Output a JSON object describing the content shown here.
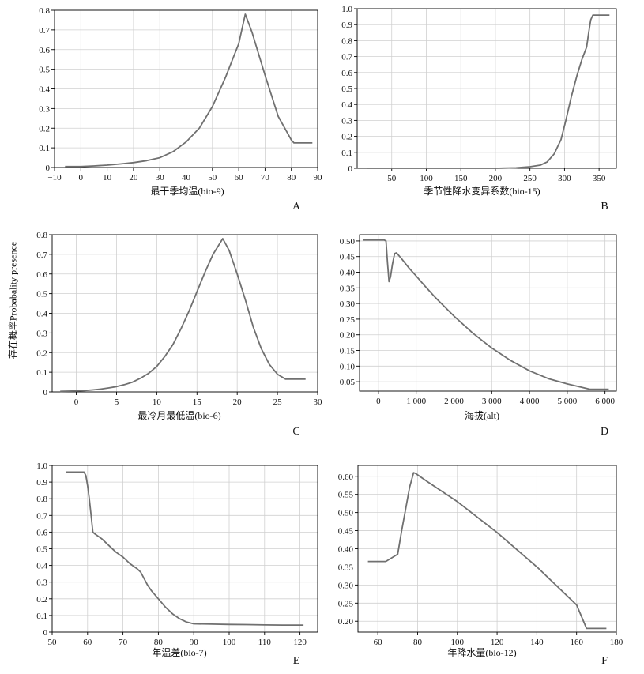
{
  "figure": {
    "shared_ylabel": "存在概率Probabality presence",
    "colors": {
      "line": "#707070",
      "grid": "#d0d0d0",
      "axis": "#000000",
      "text": "#111111"
    }
  },
  "chart_data": [
    {
      "id": "A",
      "panel_letter": "A",
      "type": "line",
      "xlabel": "最干季均温(bio-9)",
      "ylabel": "",
      "xlim": [
        -10,
        90
      ],
      "ylim": [
        0,
        0.8
      ],
      "xticks": [
        -10,
        0,
        10,
        20,
        30,
        40,
        50,
        60,
        70,
        80,
        90
      ],
      "xtick_labels": [
        "−10",
        "0",
        "10",
        "20",
        "30",
        "40",
        "50",
        "60",
        "70",
        "80",
        "90"
      ],
      "yticks": [
        0,
        0.1,
        0.2,
        0.3,
        0.4,
        0.5,
        0.6,
        0.7,
        0.8
      ],
      "ytick_labels": [
        "0",
        "0.1",
        "0.2",
        "0.3",
        "0.4",
        "0.5",
        "0.6",
        "0.7",
        "0.8"
      ],
      "grid": true,
      "x": [
        -6,
        0,
        5,
        10,
        15,
        20,
        25,
        30,
        35,
        40,
        45,
        50,
        55,
        60,
        62.5,
        65,
        70,
        75,
        80,
        81,
        88
      ],
      "y": [
        0.005,
        0.005,
        0.008,
        0.012,
        0.018,
        0.025,
        0.035,
        0.05,
        0.08,
        0.13,
        0.2,
        0.31,
        0.46,
        0.63,
        0.78,
        0.69,
        0.47,
        0.26,
        0.14,
        0.125,
        0.125
      ]
    },
    {
      "id": "B",
      "panel_letter": "B",
      "type": "line",
      "xlabel": "季节性降水变异系数(bio-15)",
      "ylabel": "",
      "xlim": [
        0,
        375
      ],
      "ylim": [
        0,
        1.0
      ],
      "xticks": [
        50,
        100,
        150,
        200,
        250,
        300,
        350
      ],
      "xtick_labels": [
        "50",
        "100",
        "150",
        "200",
        "250",
        "300",
        "350"
      ],
      "yticks": [
        0,
        0.1,
        0.2,
        0.3,
        0.4,
        0.5,
        0.6,
        0.7,
        0.8,
        0.9,
        1.0
      ],
      "ytick_labels": [
        "0",
        "0.1",
        "0.2",
        "0.3",
        "0.4",
        "0.5",
        "0.6",
        "0.7",
        "0.8",
        "0.9",
        "1.0"
      ],
      "grid": true,
      "x": [
        15,
        100,
        200,
        230,
        250,
        265,
        275,
        285,
        295,
        302,
        310,
        318,
        325,
        332,
        335,
        338,
        341,
        365
      ],
      "y": [
        0,
        0,
        0,
        0.003,
        0.01,
        0.02,
        0.04,
        0.09,
        0.18,
        0.3,
        0.45,
        0.58,
        0.68,
        0.76,
        0.85,
        0.93,
        0.96,
        0.96
      ]
    },
    {
      "id": "C",
      "panel_letter": "C",
      "type": "line",
      "xlabel": "最冷月最低温(bio-6)",
      "ylabel": "",
      "xlim": [
        -3,
        30
      ],
      "ylim": [
        0,
        0.8
      ],
      "xticks": [
        0,
        5,
        10,
        15,
        20,
        25,
        30
      ],
      "xtick_labels": [
        "0",
        "5",
        "10",
        "15",
        "20",
        "25",
        "30"
      ],
      "yticks": [
        0,
        0.1,
        0.2,
        0.3,
        0.4,
        0.5,
        0.6,
        0.7,
        0.8
      ],
      "ytick_labels": [
        "0",
        "0.1",
        "0.2",
        "0.3",
        "0.4",
        "0.5",
        "0.6",
        "0.7",
        "0.8"
      ],
      "grid": true,
      "x": [
        -2,
        0,
        1,
        2,
        3,
        4,
        5,
        6,
        7,
        8,
        9,
        10,
        11,
        12,
        13,
        14,
        15,
        16,
        17,
        18.2,
        19,
        20,
        21,
        22,
        23,
        24,
        25,
        26,
        28.5
      ],
      "y": [
        0.003,
        0.005,
        0.007,
        0.01,
        0.014,
        0.02,
        0.027,
        0.037,
        0.05,
        0.07,
        0.095,
        0.13,
        0.18,
        0.24,
        0.32,
        0.41,
        0.51,
        0.61,
        0.7,
        0.78,
        0.72,
        0.6,
        0.47,
        0.33,
        0.22,
        0.14,
        0.09,
        0.065,
        0.065
      ]
    },
    {
      "id": "D",
      "panel_letter": "D",
      "type": "line",
      "xlabel": "海拔(alt)",
      "ylabel": "",
      "xlim": [
        -500,
        6300
      ],
      "ylim": [
        0.02,
        0.52
      ],
      "xticks": [
        0,
        1000,
        2000,
        3000,
        4000,
        5000,
        6000
      ],
      "xtick_labels": [
        "0",
        "1 000",
        "2 000",
        "3 000",
        "4 000",
        "5 000",
        "6 000"
      ],
      "yticks": [
        0.05,
        0.1,
        0.15,
        0.2,
        0.25,
        0.3,
        0.35,
        0.4,
        0.45,
        0.5
      ],
      "ytick_labels": [
        "0.05",
        "0.10",
        "0.15",
        "0.20",
        "0.25",
        "0.30",
        "0.35",
        "0.40",
        "0.45",
        "0.50"
      ],
      "grid": true,
      "x": [
        -400,
        150,
        200,
        240,
        280,
        320,
        370,
        430,
        480,
        600,
        800,
        1000,
        1200,
        1500,
        2000,
        2500,
        3000,
        3500,
        4000,
        4500,
        5000,
        5600,
        6100
      ],
      "y": [
        0.503,
        0.503,
        0.5,
        0.43,
        0.37,
        0.385,
        0.425,
        0.46,
        0.462,
        0.445,
        0.415,
        0.388,
        0.36,
        0.32,
        0.26,
        0.205,
        0.158,
        0.118,
        0.085,
        0.06,
        0.043,
        0.026,
        0.026
      ]
    },
    {
      "id": "E",
      "panel_letter": "E",
      "type": "line",
      "xlabel": "年温差(bio-7)",
      "ylabel": "",
      "xlim": [
        50,
        125
      ],
      "ylim": [
        0,
        1.0
      ],
      "xticks": [
        50,
        60,
        70,
        80,
        90,
        100,
        110,
        120
      ],
      "xtick_labels": [
        "50",
        "60",
        "70",
        "80",
        "90",
        "100",
        "110",
        "120"
      ],
      "yticks": [
        0,
        0.1,
        0.2,
        0.3,
        0.4,
        0.5,
        0.6,
        0.7,
        0.8,
        0.9,
        1.0
      ],
      "ytick_labels": [
        "0",
        "0.1",
        "0.2",
        "0.3",
        "0.4",
        "0.5",
        "0.6",
        "0.7",
        "0.8",
        "0.9",
        "1.0"
      ],
      "grid": true,
      "x": [
        54,
        59,
        59.5,
        60,
        60.5,
        61,
        61.5,
        62,
        64,
        66,
        68,
        70,
        72,
        74,
        75,
        76,
        77,
        78,
        80,
        82,
        84,
        86,
        88,
        90,
        95,
        100,
        105,
        110,
        115,
        121
      ],
      "y": [
        0.96,
        0.96,
        0.94,
        0.88,
        0.8,
        0.7,
        0.6,
        0.59,
        0.56,
        0.52,
        0.48,
        0.45,
        0.41,
        0.38,
        0.36,
        0.32,
        0.28,
        0.25,
        0.2,
        0.15,
        0.11,
        0.08,
        0.06,
        0.05,
        0.048,
        0.046,
        0.045,
        0.043,
        0.042,
        0.042
      ]
    },
    {
      "id": "F",
      "panel_letter": "F",
      "type": "line",
      "xlabel": "年降水量(bio-12)",
      "ylabel": "",
      "xlim": [
        50,
        180
      ],
      "ylim": [
        0.17,
        0.63
      ],
      "xticks": [
        60,
        80,
        100,
        120,
        140,
        160,
        180
      ],
      "xtick_labels": [
        "60",
        "80",
        "100",
        "120",
        "140",
        "160",
        "180"
      ],
      "yticks": [
        0.2,
        0.25,
        0.3,
        0.35,
        0.4,
        0.45,
        0.5,
        0.55,
        0.6
      ],
      "ytick_labels": [
        "0.20",
        "0.25",
        "0.30",
        "0.35",
        "0.40",
        "0.45",
        "0.50",
        "0.55",
        "0.60"
      ],
      "grid": true,
      "x": [
        55,
        64,
        70,
        72,
        74,
        76,
        78,
        79,
        85,
        100,
        120,
        140,
        160,
        165,
        175
      ],
      "y": [
        0.365,
        0.365,
        0.385,
        0.45,
        0.51,
        0.57,
        0.61,
        0.608,
        0.585,
        0.53,
        0.445,
        0.35,
        0.245,
        0.18,
        0.18
      ]
    }
  ]
}
